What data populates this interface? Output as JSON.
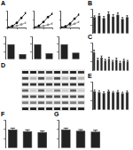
{
  "chart_data": [
    {
      "type": "line",
      "title": "A",
      "x": [
        0,
        1,
        2,
        3,
        4
      ],
      "series": [
        {
          "color": "#000000",
          "values": [
            2,
            10,
            30,
            60,
            90
          ]
        },
        {
          "color": "#888888",
          "values": [
            2,
            6,
            12,
            20,
            30
          ]
        }
      ],
      "xlim": [
        0,
        4
      ],
      "xticks": [
        0,
        2,
        4
      ],
      "ylim": [
        0,
        100
      ],
      "yticks": [
        0,
        50,
        100
      ],
      "tick_labels": false
    },
    {
      "type": "line",
      "x": [
        0,
        1,
        2,
        3,
        4
      ],
      "series": [
        {
          "color": "#000000",
          "values": [
            2,
            12,
            35,
            65,
            85
          ]
        },
        {
          "color": "#888888",
          "values": [
            2,
            5,
            10,
            18,
            25
          ]
        }
      ],
      "xlim": [
        0,
        4
      ],
      "xticks": [
        0,
        2,
        4
      ],
      "ylim": [
        0,
        100
      ],
      "yticks": [
        0,
        50,
        100
      ],
      "tick_labels": false
    },
    {
      "type": "line",
      "x": [
        0,
        1,
        2,
        3,
        4
      ],
      "series": [
        {
          "color": "#000000",
          "values": [
            2,
            8,
            25,
            55,
            80
          ]
        },
        {
          "color": "#888888",
          "values": [
            2,
            6,
            14,
            24,
            35
          ]
        }
      ],
      "xlim": [
        0,
        4
      ],
      "xticks": [
        0,
        2,
        4
      ],
      "ylim": [
        0,
        100
      ],
      "yticks": [
        0,
        50,
        100
      ],
      "tick_labels": false
    },
    {
      "type": "bar",
      "categories": [
        null,
        null
      ],
      "values": [
        100,
        35
      ],
      "color": "#222222",
      "ylim": [
        0,
        150
      ],
      "yticks": [
        0,
        50,
        100,
        150
      ],
      "tick_labels": false
    },
    {
      "type": "bar",
      "categories": [
        null,
        null
      ],
      "values": [
        100,
        40
      ],
      "color": "#222222",
      "ylim": [
        0,
        150
      ],
      "yticks": [
        0,
        50,
        100,
        150
      ],
      "tick_labels": false
    },
    {
      "type": "bar",
      "categories": [
        null,
        null
      ],
      "values": [
        100,
        45
      ],
      "color": "#222222",
      "ylim": [
        0,
        150
      ],
      "yticks": [
        0,
        50,
        100,
        150
      ],
      "tick_labels": false
    },
    {
      "type": "bar",
      "title": "B",
      "categories": [
        null,
        null,
        null,
        null,
        null,
        null,
        null,
        null
      ],
      "values": [
        100,
        110,
        95,
        120,
        105,
        115,
        90,
        100
      ],
      "errors": [
        8,
        10,
        9,
        12,
        10,
        11,
        8,
        9
      ],
      "color": "#222222",
      "ylim": [
        0,
        150
      ],
      "yticks": [
        0,
        50,
        100,
        150
      ],
      "tick_labels": false
    },
    {
      "type": "bar",
      "title": "C",
      "categories": [
        null,
        null,
        null,
        null,
        null,
        null,
        null,
        null,
        null,
        null
      ],
      "values": [
        100,
        60,
        70,
        55,
        65,
        50,
        60,
        45,
        55,
        50
      ],
      "errors": [
        10,
        8,
        9,
        7,
        8,
        6,
        8,
        6,
        7,
        6
      ],
      "color": "#222222",
      "ylim": [
        0,
        150
      ],
      "yticks": [
        0,
        50,
        100,
        150
      ],
      "tick_labels": false
    },
    {
      "type": "bar",
      "title": "E",
      "categories": [
        null,
        null,
        null,
        null,
        null,
        null,
        null,
        null
      ],
      "values": [
        100,
        95,
        90,
        98,
        92,
        96,
        88,
        94
      ],
      "errors": [
        6,
        7,
        6,
        7,
        6,
        7,
        6,
        7
      ],
      "color": "#222222",
      "ylim": [
        0,
        150
      ],
      "yticks": [
        0,
        50,
        100,
        150
      ],
      "tick_labels": false
    },
    {
      "type": "bar",
      "title": "F",
      "categories": [
        null,
        null,
        null
      ],
      "values": [
        100,
        90,
        85
      ],
      "errors": [
        6,
        7,
        6
      ],
      "color": "#222222",
      "ylim": [
        0,
        150
      ],
      "yticks": [
        0,
        50,
        100,
        150
      ],
      "tick_labels": false
    },
    {
      "type": "bar",
      "title": "G",
      "categories": [
        null,
        null,
        null
      ],
      "values": [
        100,
        92,
        88
      ],
      "errors": [
        6,
        6,
        7
      ],
      "color": "#222222",
      "ylim": [
        0,
        150
      ],
      "yticks": [
        0,
        50,
        100,
        150
      ],
      "tick_labels": false
    }
  ],
  "blot": {
    "title": "D",
    "bands": [
      [
        0.9,
        0.9,
        0.8,
        0.8,
        0.9,
        0.8,
        0.9,
        0.8
      ],
      [
        0.7,
        0.3,
        0.7,
        0.3,
        0.7,
        0.3,
        0.7,
        0.3
      ],
      [
        0.8,
        0.8,
        0.8,
        0.8,
        0.8,
        0.8,
        0.8,
        0.8
      ],
      [
        0.6,
        0.2,
        0.6,
        0.2,
        0.5,
        0.2,
        0.6,
        0.2
      ],
      [
        0.7,
        0.7,
        0.7,
        0.7,
        0.7,
        0.7,
        0.7,
        0.7
      ],
      [
        0.5,
        0.5,
        0.6,
        0.5,
        0.5,
        0.6,
        0.5,
        0.5
      ],
      [
        0.9,
        0.9,
        0.9,
        0.9,
        0.9,
        0.9,
        0.9,
        0.9
      ]
    ]
  }
}
